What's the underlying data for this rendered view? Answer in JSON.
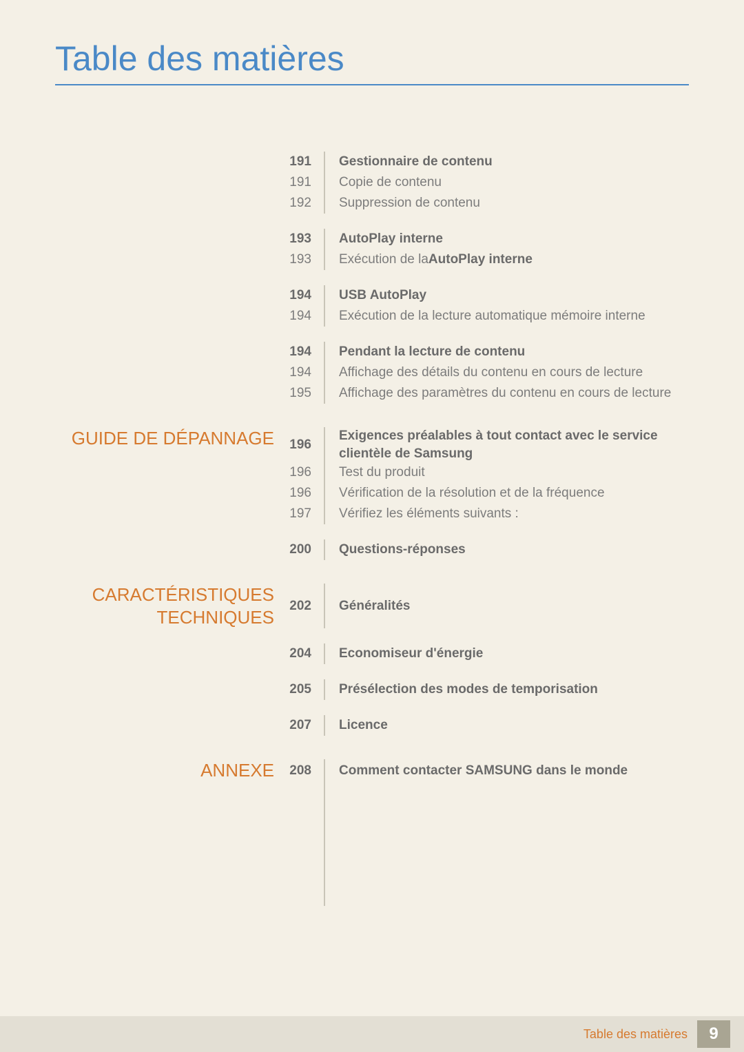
{
  "title": "Table des matières",
  "footer": {
    "label": "Table des matières",
    "pageNumber": "9"
  },
  "sections": [
    {
      "label": "",
      "groups": [
        {
          "heading": {
            "page": "191",
            "text": "Gestionnaire de contenu"
          },
          "items": [
            {
              "page": "191",
              "text": "Copie de contenu"
            },
            {
              "page": "192",
              "text": "Suppression de contenu"
            }
          ]
        },
        {
          "heading": {
            "page": "193",
            "text": "AutoPlay interne"
          },
          "items": [
            {
              "page": "193",
              "text_pre": "Exécution de la ",
              "text_bold": "AutoPlay interne",
              "text_post": ""
            }
          ]
        },
        {
          "heading": {
            "page": "194",
            "text": "USB AutoPlay"
          },
          "items": [
            {
              "page": "194",
              "text": "Exécution de la lecture automatique mémoire interne"
            }
          ]
        },
        {
          "heading": {
            "page": "194",
            "text": "Pendant la lecture de contenu"
          },
          "items": [
            {
              "page": "194",
              "text": "Affichage des détails du contenu en cours de lecture"
            },
            {
              "page": "195",
              "text": "Affichage des paramètres du contenu en cours de lecture"
            }
          ]
        }
      ]
    },
    {
      "label": "GUIDE DE DÉPANNAGE",
      "groups": [
        {
          "heading": {
            "page": "196",
            "text": "Exigences préalables à tout contact avec le service clientèle de Samsung"
          },
          "items": [
            {
              "page": "196",
              "text": "Test du produit"
            },
            {
              "page": "196",
              "text": "Vérification de la résolution et de la fréquence"
            },
            {
              "page": "197",
              "text": "Vérifiez les éléments suivants :"
            }
          ]
        },
        {
          "heading": {
            "page": "200",
            "text": "Questions-réponses"
          },
          "items": []
        }
      ]
    },
    {
      "label": "CARACTÉRISTIQUES TECHNIQUES",
      "groups": [
        {
          "heading": {
            "page": "202",
            "text": "Généralités"
          },
          "items": []
        },
        {
          "heading": {
            "page": "204",
            "text": "Economiseur d'énergie"
          },
          "items": []
        },
        {
          "heading": {
            "page": "205",
            "text": "Présélection des modes de temporisation"
          },
          "items": []
        },
        {
          "heading": {
            "page": "207",
            "text": "Licence"
          },
          "items": []
        }
      ]
    },
    {
      "label": "ANNEXE",
      "groups": [
        {
          "heading": {
            "page": "208",
            "text": "Comment contacter SAMSUNG dans le monde"
          },
          "items": []
        }
      ]
    }
  ]
}
